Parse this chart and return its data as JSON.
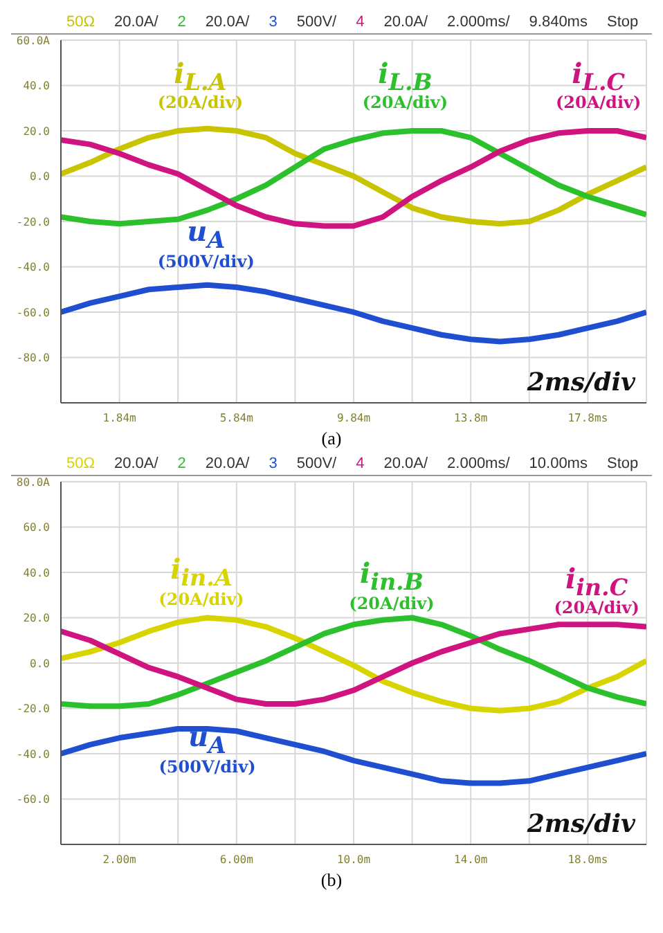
{
  "chart_data": [
    {
      "type": "line",
      "x": [
        -0.16,
        0.84,
        1.84,
        2.84,
        3.84,
        4.84,
        5.84,
        6.84,
        7.84,
        8.84,
        9.84,
        10.84,
        11.84,
        12.84,
        13.84,
        14.84,
        15.84,
        16.84,
        17.84,
        18.84,
        19.84
      ],
      "series": [
        {
          "name": "i$_{L.A}$",
          "color": "#c8c400",
          "values": [
            1,
            6,
            12,
            17,
            20,
            21,
            20,
            17,
            10,
            5,
            0,
            -7,
            -14,
            -18,
            -20,
            -21,
            -20,
            -15,
            -8,
            -2,
            4
          ]
        },
        {
          "name": "i$_{L.B}$",
          "color": "#2cc02c",
          "values": [
            -18,
            -20,
            -21,
            -20,
            -19,
            -15,
            -10,
            -4,
            4,
            12,
            16,
            19,
            20,
            20,
            17,
            10,
            3,
            -4,
            -9,
            -13,
            -17
          ]
        },
        {
          "name": "i$_{L.C}$",
          "color": "#d0147f",
          "values": [
            16,
            14,
            10,
            5,
            1,
            -6,
            -13,
            -18,
            -21,
            -22,
            -22,
            -18,
            -9,
            -2,
            4,
            11,
            16,
            19,
            20,
            20,
            17
          ]
        },
        {
          "name": "u$_{A}$",
          "color": "#1f4fd0",
          "values": [
            -60,
            -56,
            -53,
            -50,
            -49,
            -48,
            -49,
            -51,
            -54,
            -57,
            -60,
            -64,
            -67,
            -70,
            -72,
            -73,
            -72,
            -70,
            -67,
            -64,
            -60
          ]
        }
      ],
      "xlim": [
        -0.16,
        19.84
      ],
      "xticks": [
        {
          "value": 1.84,
          "label": "1.84m"
        },
        {
          "value": 3.84,
          "label": null
        },
        {
          "value": 5.84,
          "label": "5.84m"
        },
        {
          "value": 7.84,
          "label": null
        },
        {
          "value": 9.84,
          "label": "9.84m"
        },
        {
          "value": 11.84,
          "label": null
        },
        {
          "value": 13.84,
          "label": "13.8m"
        },
        {
          "value": 15.84,
          "label": null
        },
        {
          "value": 17.84,
          "label": "17.8ms"
        }
      ],
      "ylim": [
        -100,
        60
      ],
      "yticks": [
        {
          "value": 60,
          "label": "60.0A"
        },
        {
          "value": 40,
          "label": "40.0"
        },
        {
          "value": 20,
          "label": "20.0"
        },
        {
          "value": 0,
          "label": "0.0"
        },
        {
          "value": -20,
          "label": "-20.0"
        },
        {
          "value": -40,
          "label": "-40.0"
        },
        {
          "value": -60,
          "label": "-60.0"
        },
        {
          "value": -80,
          "label": "-80.0"
        },
        {
          "value": -100,
          "label": null
        }
      ],
      "grid": true,
      "marker": "none",
      "line_style": "solid",
      "annotations": [
        "50Ω",
        "20.0A/",
        "2",
        "20.0A/",
        "3",
        "500V/",
        "4",
        "20.0A/",
        "2.000ms/",
        "9.840ms",
        "Stop",
        "(20A/div)",
        "(20A/div)",
        "(20A/div)",
        "(500V/div)",
        "2ms/div",
        "(a)"
      ]
    },
    {
      "type": "line",
      "x": [
        0,
        1,
        2,
        3,
        4,
        5,
        6,
        7,
        8,
        9,
        10,
        11,
        12,
        13,
        14,
        15,
        16,
        17,
        18,
        19,
        20
      ],
      "series": [
        {
          "name": "i$_{in.A}$",
          "color": "#d8d400",
          "values": [
            2,
            5,
            9,
            14,
            18,
            20,
            19,
            16,
            11,
            5,
            -1,
            -8,
            -13,
            -17,
            -20,
            -21,
            -20,
            -17,
            -11,
            -6,
            1
          ]
        },
        {
          "name": "i$_{in.B}$",
          "color": "#2cc02c",
          "values": [
            -18,
            -19,
            -19,
            -18,
            -14,
            -9,
            -4,
            1,
            7,
            13,
            17,
            19,
            20,
            17,
            12,
            6,
            1,
            -5,
            -11,
            -15,
            -18
          ]
        },
        {
          "name": "i$_{in.C}$",
          "color": "#d0147f",
          "values": [
            14,
            10,
            4,
            -2,
            -6,
            -11,
            -16,
            -18,
            -18,
            -16,
            -12,
            -6,
            0,
            5,
            9,
            13,
            15,
            17,
            17,
            17,
            16
          ]
        },
        {
          "name": "u$_{A}$",
          "color": "#1f4fd0",
          "values": [
            -40,
            -36,
            -33,
            -31,
            -29,
            -29,
            -30,
            -33,
            -36,
            -39,
            -43,
            -46,
            -49,
            -52,
            -53,
            -53,
            -52,
            -49,
            -46,
            -43,
            -40
          ]
        }
      ],
      "xlim": [
        0,
        20
      ],
      "xticks": [
        {
          "value": 2,
          "label": "2.00m"
        },
        {
          "value": 4,
          "label": null
        },
        {
          "value": 6,
          "label": "6.00m"
        },
        {
          "value": 8,
          "label": null
        },
        {
          "value": 10,
          "label": "10.0m"
        },
        {
          "value": 12,
          "label": null
        },
        {
          "value": 14,
          "label": "14.0m"
        },
        {
          "value": 16,
          "label": null
        },
        {
          "value": 18,
          "label": "18.0ms"
        }
      ],
      "ylim": [
        -80,
        80
      ],
      "yticks": [
        {
          "value": 80,
          "label": "80.0A"
        },
        {
          "value": 60,
          "label": "60.0"
        },
        {
          "value": 40,
          "label": "40.0"
        },
        {
          "value": 20,
          "label": "20.0"
        },
        {
          "value": 0,
          "label": "0.0"
        },
        {
          "value": -20,
          "label": "-20.0"
        },
        {
          "value": -40,
          "label": "-40.0"
        },
        {
          "value": -60,
          "label": "-60.0"
        },
        {
          "value": -80,
          "label": null
        }
      ],
      "grid": true,
      "marker": "none",
      "line_style": "solid",
      "annotations": [
        "50Ω",
        "20.0A/",
        "2",
        "20.0A/",
        "3",
        "500V/",
        "4",
        "20.0A/",
        "2.000ms/",
        "10.00ms",
        "Stop",
        "(20A/div)",
        "(20A/div)",
        "(20A/div)",
        "(500V/div)",
        "2ms/div",
        "(b)"
      ]
    }
  ]
}
